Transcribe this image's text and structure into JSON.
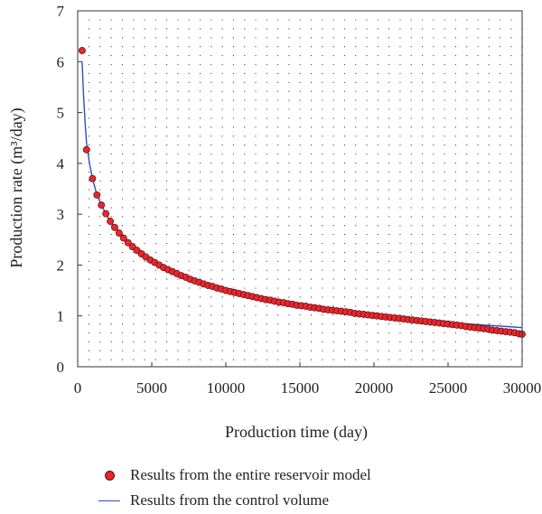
{
  "chart_data": {
    "type": "scatter",
    "xlabel": "Production time (day)",
    "ylabel": "Production rate (m³/day)",
    "xlim": [
      0,
      30000
    ],
    "ylim": [
      0,
      7
    ],
    "x_ticks": [
      0,
      5000,
      10000,
      15000,
      20000,
      25000,
      30000
    ],
    "y_ticks": [
      0,
      1,
      2,
      3,
      4,
      5,
      6,
      7
    ],
    "grid": "dotted",
    "legend_position": "bottom",
    "series": [
      {
        "name": "Results from the entire reservoir model",
        "style": "markers",
        "color": "#e8262d",
        "x": [
          300,
          600,
          1000,
          1300,
          1600,
          1900,
          2200,
          2500,
          2800,
          3100,
          3400,
          3700,
          4000,
          4300,
          4600,
          4900,
          5200,
          5500,
          5800,
          6100,
          6400,
          6700,
          7000,
          7300,
          7600,
          7900,
          8200,
          8500,
          8800,
          9100,
          9400,
          9700,
          10000,
          10300,
          10600,
          10900,
          11200,
          11500,
          11800,
          12100,
          12400,
          12700,
          13000,
          13300,
          13600,
          13900,
          14200,
          14500,
          14800,
          15100,
          15400,
          15700,
          16000,
          16300,
          16600,
          16900,
          17200,
          17500,
          17800,
          18100,
          18400,
          18700,
          19000,
          19300,
          19600,
          19900,
          20200,
          20500,
          20800,
          21100,
          21400,
          21700,
          22000,
          22300,
          22600,
          22900,
          23200,
          23500,
          23800,
          24100,
          24400,
          24700,
          25000,
          25300,
          25600,
          25900,
          26200,
          26500,
          26800,
          27100,
          27400,
          27700,
          28000,
          28300,
          28600,
          28900,
          29200,
          29500,
          29800,
          30000
        ],
        "y": [
          6.22,
          4.27,
          3.7,
          3.38,
          3.18,
          3.01,
          2.86,
          2.74,
          2.63,
          2.53,
          2.44,
          2.36,
          2.29,
          2.22,
          2.16,
          2.1,
          2.05,
          2.0,
          1.95,
          1.91,
          1.87,
          1.83,
          1.79,
          1.76,
          1.72,
          1.69,
          1.66,
          1.63,
          1.6,
          1.58,
          1.55,
          1.53,
          1.5,
          1.48,
          1.46,
          1.44,
          1.42,
          1.4,
          1.38,
          1.36,
          1.34,
          1.32,
          1.31,
          1.29,
          1.27,
          1.26,
          1.24,
          1.23,
          1.21,
          1.2,
          1.19,
          1.17,
          1.16,
          1.15,
          1.13,
          1.12,
          1.11,
          1.1,
          1.09,
          1.08,
          1.07,
          1.05,
          1.04,
          1.03,
          1.02,
          1.01,
          1.0,
          0.99,
          0.98,
          0.97,
          0.96,
          0.95,
          0.94,
          0.93,
          0.92,
          0.91,
          0.9,
          0.89,
          0.88,
          0.87,
          0.86,
          0.85,
          0.84,
          0.83,
          0.82,
          0.81,
          0.79,
          0.78,
          0.77,
          0.76,
          0.75,
          0.74,
          0.72,
          0.71,
          0.7,
          0.69,
          0.68,
          0.67,
          0.65,
          0.64
        ]
      },
      {
        "name": "Results from the control volume",
        "style": "line",
        "color": "#2b4fc4",
        "x": [
          300,
          400,
          500,
          600,
          800,
          1000,
          1300,
          1600,
          2000,
          2500,
          3000,
          3500,
          4000,
          5000,
          6000,
          7000,
          8000,
          9000,
          10000,
          11000,
          12000,
          13000,
          14000,
          15000,
          16000,
          17000,
          18000,
          19000,
          20000,
          21000,
          22000,
          23000,
          24000,
          25000,
          26000,
          27000,
          28000,
          29000,
          30000
        ],
        "y": [
          6.0,
          5.3,
          4.8,
          4.4,
          4.0,
          3.7,
          3.38,
          3.18,
          2.96,
          2.74,
          2.56,
          2.42,
          2.29,
          2.08,
          1.91,
          1.78,
          1.67,
          1.57,
          1.49,
          1.41,
          1.35,
          1.29,
          1.24,
          1.19,
          1.15,
          1.11,
          1.07,
          1.04,
          1.01,
          0.98,
          0.95,
          0.92,
          0.9,
          0.87,
          0.85,
          0.83,
          0.81,
          0.79,
          0.77
        ]
      }
    ]
  }
}
